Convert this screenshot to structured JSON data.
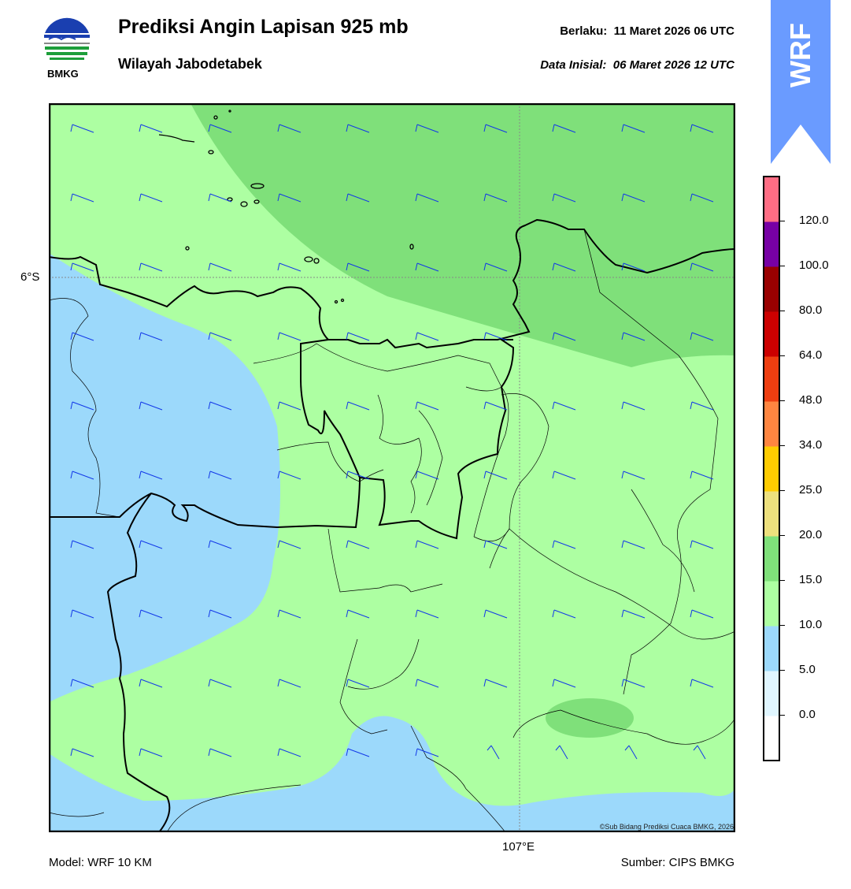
{
  "header": {
    "title": "Prediksi Angin Lapisan 925 mb",
    "subtitle": "Wilayah Jabodetabek",
    "valid_label": "Berlaku:",
    "valid_time": "11 Maret 2026 06 UTC",
    "init_label": "Data Inisial:",
    "init_time": "06 Maret 2026 12 UTC"
  },
  "logo": {
    "text": "BMKG"
  },
  "badge": {
    "text": "WRF",
    "color": "#6a9bff"
  },
  "map": {
    "lat_label": "6°S",
    "lon_label": "107°E",
    "credit": "©Sub Bidang Prediksi Cuaca BMKG, 2026",
    "colors": {
      "light_blue": "#9cd9fb",
      "light_green": "#adffa2",
      "green": "#7fe07a",
      "wind_barb": "#1238e8",
      "border": "#000000"
    }
  },
  "colorbar": {
    "labels": [
      "0.0",
      "5.0",
      "10.0",
      "15.0",
      "20.0",
      "25.0",
      "34.0",
      "48.0",
      "64.0",
      "80.0",
      "100.0",
      "120.0"
    ],
    "colors": [
      "#ffffff",
      "#e0f6ff",
      "#9cd9fb",
      "#adffa2",
      "#7fe07a",
      "#ede07d",
      "#ffcc00",
      "#ff8540",
      "#ee3e10",
      "#cc0000",
      "#990000",
      "#7700a4",
      "#ff6d84"
    ]
  },
  "footer": {
    "model": "Model: WRF 10 KM",
    "source": "Sumber: CIPS BMKG"
  }
}
